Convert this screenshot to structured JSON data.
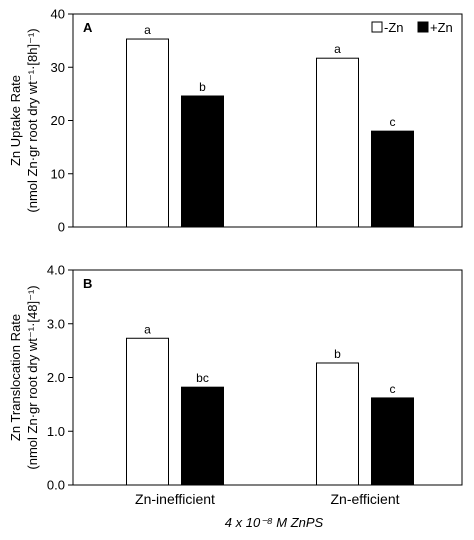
{
  "chart_data": [
    {
      "type": "bar",
      "panel_label": "A",
      "categories": [
        "Zn-inefficient",
        "Zn-efficient"
      ],
      "series": [
        {
          "name": "-Zn",
          "color": "#ffffff",
          "values": [
            35.3,
            31.7
          ]
        },
        {
          "name": "+Zn",
          "color": "#000000",
          "values": [
            24.6,
            18.0
          ]
        }
      ],
      "letters": [
        [
          "a",
          "a"
        ],
        [
          "b",
          "c"
        ]
      ],
      "ylabel_line1": "Zn Uptake Rate",
      "ylabel_line2": "(nmol Zn·gr root dry wt⁻¹·[8h]⁻¹)",
      "ylim": [
        0,
        40
      ],
      "yticks": [
        "0",
        "10",
        "20",
        "30",
        "40"
      ],
      "legend": "top-right",
      "grid": false
    },
    {
      "type": "bar",
      "panel_label": "B",
      "categories": [
        "Zn-inefficient",
        "Zn-efficient"
      ],
      "series": [
        {
          "name": "-Zn",
          "color": "#ffffff",
          "values": [
            2.73,
            2.27
          ]
        },
        {
          "name": "+Zn",
          "color": "#000000",
          "values": [
            1.82,
            1.62
          ]
        }
      ],
      "letters": [
        [
          "a",
          "b"
        ],
        [
          "bc",
          "c"
        ]
      ],
      "ylabel_line1": "Zn Translocation Rate",
      "ylabel_line2": "(nmol Zn·gr root dry wt⁻¹·[48]⁻¹)",
      "ylim": [
        0,
        4
      ],
      "yticks": [
        "0.0",
        "1.0",
        "2.0",
        "3.0",
        "4.0"
      ],
      "grid": false
    }
  ],
  "xlabel": "4 x 10⁻⁸ M ZnPS"
}
